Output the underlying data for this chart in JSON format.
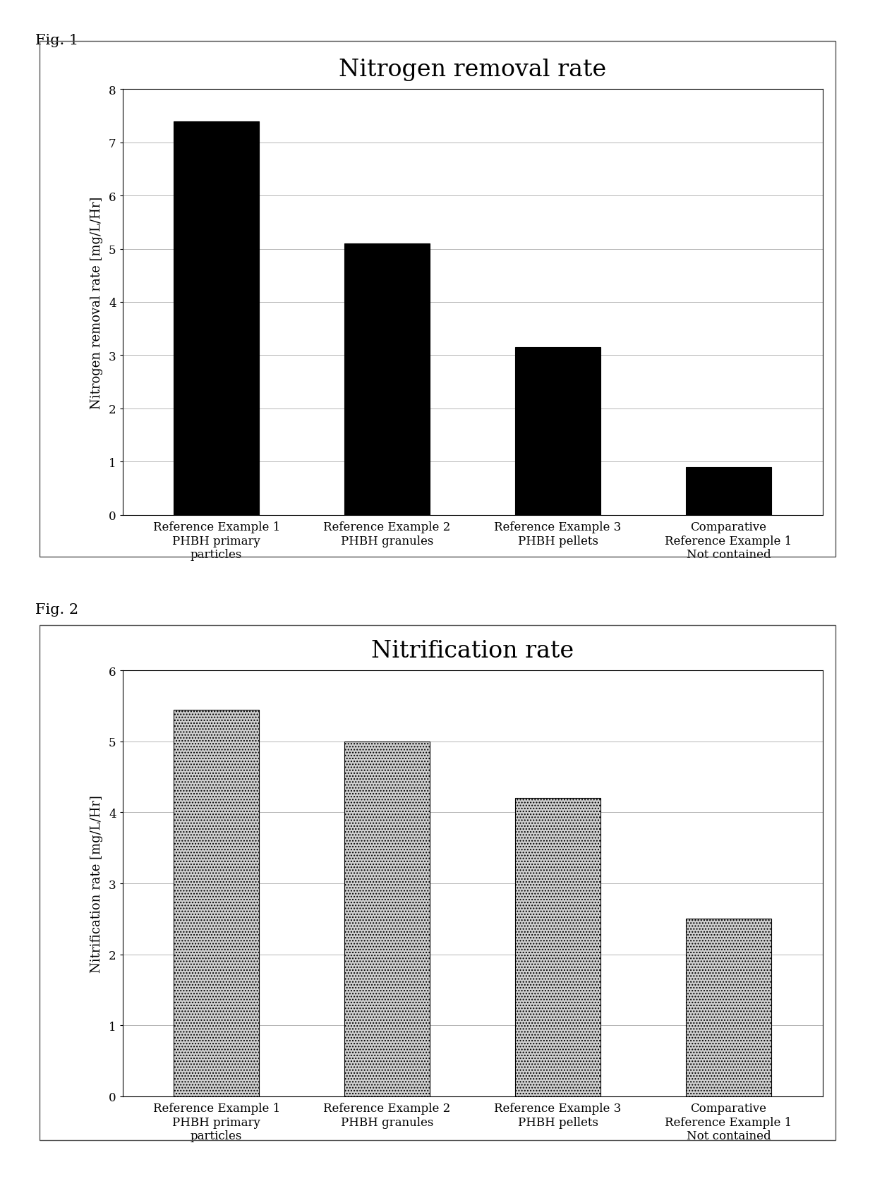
{
  "fig1": {
    "title": "Nitrogen removal rate",
    "ylabel": "Nitrogen removal rate [mg/L/Hr]",
    "categories": [
      "Reference Example 1\nPHBH primary\nparticles",
      "Reference Example 2\nPHBH granules",
      "Reference Example 3\nPHBH pellets",
      "Comparative\nReference Example 1\nNot contained"
    ],
    "values": [
      7.4,
      5.1,
      3.15,
      0.9
    ],
    "bar_color": "#000000",
    "ylim": [
      0,
      8
    ],
    "yticks": [
      0,
      1,
      2,
      3,
      4,
      5,
      6,
      7,
      8
    ],
    "title_fontsize": 24,
    "label_fontsize": 13,
    "tick_fontsize": 12,
    "fig_label": "Fig. 1"
  },
  "fig2": {
    "title": "Nitrification rate",
    "ylabel": "Nitrification rate [mg/L/Hr]",
    "categories": [
      "Reference Example 1\nPHBH primary\nparticles",
      "Reference Example 2\nPHBH granules",
      "Reference Example 3\nPHBH pellets",
      "Comparative\nReference Example 1\nNot contained"
    ],
    "values": [
      5.45,
      5.0,
      4.2,
      2.5
    ],
    "bar_color": "#d0d0d0",
    "hatch": "....",
    "ylim": [
      0,
      6
    ],
    "yticks": [
      0,
      1,
      2,
      3,
      4,
      5,
      6
    ],
    "title_fontsize": 24,
    "label_fontsize": 13,
    "tick_fontsize": 12,
    "fig_label": "Fig. 2"
  },
  "fig_label_fontsize": 15,
  "background_color": "#ffffff"
}
